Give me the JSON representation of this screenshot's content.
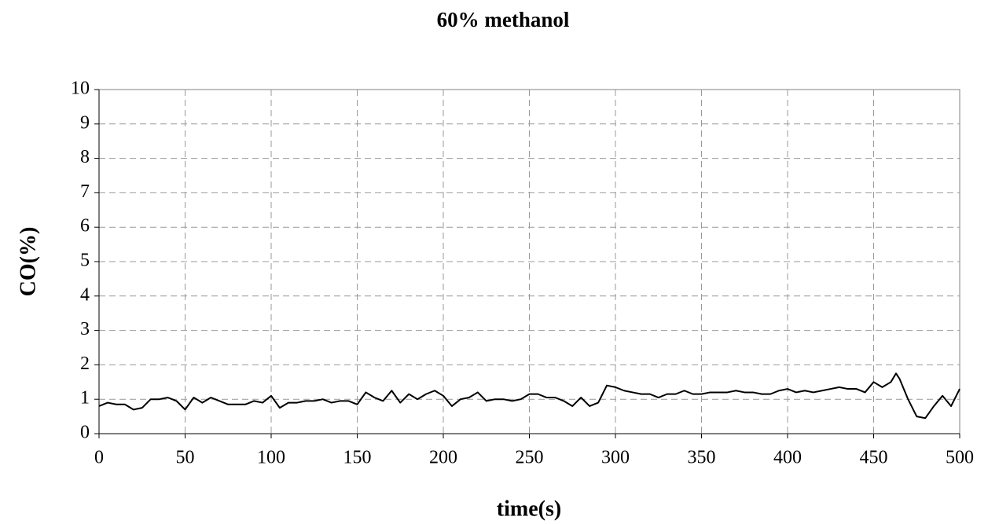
{
  "chart_data": {
    "type": "line",
    "title": "60% methanol",
    "x_label": "time(s)",
    "y_label": "CO(%)",
    "grid": true,
    "color": "#000000",
    "xlim": [
      0,
      500
    ],
    "xticks": [
      0,
      50,
      100,
      150,
      200,
      250,
      300,
      350,
      400,
      450,
      500
    ],
    "ylim": [
      0,
      10
    ],
    "yticks": [
      0,
      1,
      2,
      3,
      4,
      5,
      6,
      7,
      8,
      9,
      10
    ],
    "x": [
      0,
      5,
      10,
      15,
      20,
      25,
      30,
      35,
      40,
      45,
      50,
      55,
      60,
      65,
      70,
      75,
      80,
      85,
      90,
      95,
      100,
      105,
      110,
      115,
      120,
      125,
      130,
      135,
      140,
      145,
      150,
      155,
      160,
      165,
      170,
      175,
      180,
      185,
      190,
      195,
      200,
      205,
      210,
      215,
      220,
      225,
      230,
      235,
      240,
      245,
      250,
      255,
      260,
      265,
      270,
      275,
      280,
      285,
      290,
      295,
      300,
      305,
      310,
      315,
      320,
      325,
      330,
      335,
      340,
      345,
      350,
      355,
      360,
      365,
      370,
      375,
      380,
      385,
      390,
      395,
      400,
      405,
      410,
      415,
      420,
      425,
      430,
      435,
      440,
      445,
      450,
      455,
      460,
      463,
      465,
      470,
      475,
      480,
      485,
      490,
      495,
      500
    ],
    "values": [
      0.8,
      0.9,
      0.85,
      0.85,
      0.7,
      0.75,
      1.0,
      1.0,
      1.05,
      0.95,
      0.7,
      1.05,
      0.9,
      1.05,
      0.95,
      0.85,
      0.85,
      0.85,
      0.95,
      0.9,
      1.1,
      0.75,
      0.9,
      0.9,
      0.95,
      0.95,
      1.0,
      0.9,
      0.95,
      0.95,
      0.85,
      1.2,
      1.05,
      0.95,
      1.25,
      0.9,
      1.15,
      1.0,
      1.15,
      1.25,
      1.1,
      0.8,
      1.0,
      1.05,
      1.2,
      0.95,
      1.0,
      1.0,
      0.95,
      1.0,
      1.15,
      1.15,
      1.05,
      1.05,
      0.95,
      0.8,
      1.05,
      0.8,
      0.9,
      1.4,
      1.35,
      1.25,
      1.2,
      1.15,
      1.15,
      1.05,
      1.15,
      1.15,
      1.25,
      1.15,
      1.15,
      1.2,
      1.2,
      1.2,
      1.25,
      1.2,
      1.2,
      1.15,
      1.15,
      1.25,
      1.3,
      1.2,
      1.25,
      1.2,
      1.25,
      1.3,
      1.35,
      1.3,
      1.3,
      1.2,
      1.5,
      1.35,
      1.5,
      1.75,
      1.6,
      1.0,
      0.5,
      0.45,
      0.8,
      1.1,
      0.8,
      1.3
    ]
  }
}
